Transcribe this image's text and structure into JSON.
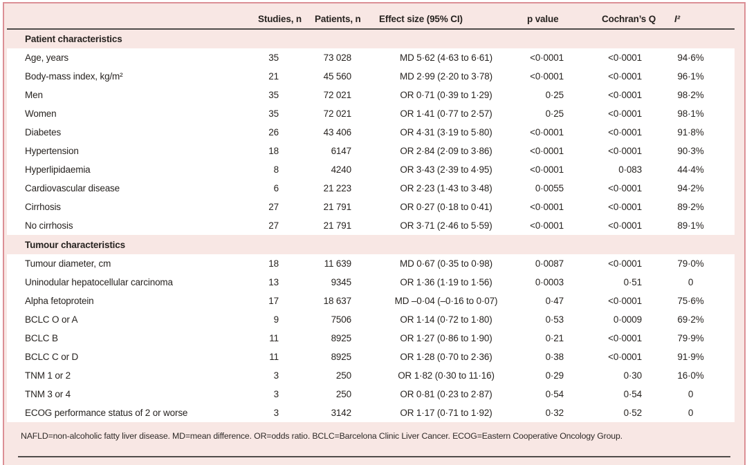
{
  "table": {
    "columns": [
      "",
      "Studies, n",
      "Patients, n",
      "Effect size (95% CI)",
      "p value",
      "Cochran’s Q",
      "I²"
    ],
    "sections": [
      {
        "title": "Patient characteristics",
        "rows": [
          {
            "label": "Age, years",
            "studies": "35",
            "patients": "73 028",
            "effect": "MD 5·62 (4·63 to 6·61)",
            "p": "<0·0001",
            "q": "<0·0001",
            "i2": "94·6%"
          },
          {
            "label": "Body-mass index, kg/m²",
            "studies": "21",
            "patients": "45 560",
            "effect": "MD 2·99 (2·20 to 3·78)",
            "p": "<0·0001",
            "q": "<0·0001",
            "i2": "96·1%"
          },
          {
            "label": "Men",
            "studies": "35",
            "patients": "72 021",
            "effect": "OR 0·71 (0·39 to 1·29)",
            "p": "0·25",
            "q": "<0·0001",
            "i2": "98·2%"
          },
          {
            "label": "Women",
            "studies": "35",
            "patients": "72 021",
            "effect": "OR 1·41 (0·77 to 2·57)",
            "p": "0·25",
            "q": "<0·0001",
            "i2": "98·1%"
          },
          {
            "label": "Diabetes",
            "studies": "26",
            "patients": "43 406",
            "effect": "OR 4·31 (3·19 to 5·80)",
            "p": "<0·0001",
            "q": "<0·0001",
            "i2": "91·8%"
          },
          {
            "label": "Hypertension",
            "studies": "18",
            "patients": "6147",
            "effect": "OR 2·84 (2·09 to 3·86)",
            "p": "<0·0001",
            "q": "<0·0001",
            "i2": "90·3%"
          },
          {
            "label": "Hyperlipidaemia",
            "studies": "8",
            "patients": "4240",
            "effect": "OR 3·43 (2·39 to 4·95)",
            "p": "<0·0001",
            "q": "0·083",
            "i2": "44·4%"
          },
          {
            "label": "Cardiovascular disease",
            "studies": "6",
            "patients": "21 223",
            "effect": "OR 2·23 (1·43 to 3·48)",
            "p": "0·0055",
            "q": "<0·0001",
            "i2": "94·2%"
          },
          {
            "label": "Cirrhosis",
            "studies": "27",
            "patients": "21 791",
            "effect": "OR 0·27 (0·18 to 0·41)",
            "p": "<0·0001",
            "q": "<0·0001",
            "i2": "89·2%"
          },
          {
            "label": "No cirrhosis",
            "studies": "27",
            "patients": "21 791",
            "effect": "OR 3·71 (2·46 to 5·59)",
            "p": "<0·0001",
            "q": "<0·0001",
            "i2": "89·1%"
          }
        ]
      },
      {
        "title": "Tumour characteristics",
        "rows": [
          {
            "label": "Tumour diameter, cm",
            "studies": "18",
            "patients": "11 639",
            "effect": "MD 0·67 (0·35 to 0·98)",
            "p": "0·0087",
            "q": "<0·0001",
            "i2": "79·0%"
          },
          {
            "label": "Uninodular hepatocellular carcinoma",
            "studies": "13",
            "patients": "9345",
            "effect": "OR 1·36 (1·19 to 1·56)",
            "p": "0·0003",
            "q": "0·51",
            "i2": "0"
          },
          {
            "label": "Alpha fetoprotein",
            "studies": "17",
            "patients": "18 637",
            "effect": "MD –0·04 (–0·16 to 0·07)",
            "p": "0·47",
            "q": "<0·0001",
            "i2": "75·6%"
          },
          {
            "label": "BCLC O or A",
            "studies": "9",
            "patients": "7506",
            "effect": "OR 1·14 (0·72 to 1·80)",
            "p": "0·53",
            "q": "0·0009",
            "i2": "69·2%"
          },
          {
            "label": "BCLC B",
            "studies": "11",
            "patients": "8925",
            "effect": "OR 1·27 (0·86 to 1·90)",
            "p": "0·21",
            "q": "<0·0001",
            "i2": "79·9%"
          },
          {
            "label": "BCLC C or D",
            "studies": "11",
            "patients": "8925",
            "effect": "OR 1·28 (0·70 to 2·36)",
            "p": "0·38",
            "q": "<0·0001",
            "i2": "91·9%"
          },
          {
            "label": "TNM 1 or 2",
            "studies": "3",
            "patients": "250",
            "effect": "OR 1·82 (0·30 to 11·16)",
            "p": "0·29",
            "q": "0·30",
            "i2": "16·0%"
          },
          {
            "label": "TNM 3 or 4",
            "studies": "3",
            "patients": "250",
            "effect": "OR 0·81 (0·23 to 2·87)",
            "p": "0·54",
            "q": "0·54",
            "i2": "0"
          },
          {
            "label": "ECOG performance status of 2 or worse",
            "studies": "3",
            "patients": "3142",
            "effect": "OR 1·17 (0·71 to 1·92)",
            "p": "0·32",
            "q": "0·52",
            "i2": "0"
          }
        ]
      }
    ],
    "footnote": "NAFLD=non-alcoholic fatty liver disease. MD=mean difference. OR=odds ratio. BCLC=Barcelona Clinic Liver Cancer. ECOG=Eastern Cooperative Oncology Group."
  },
  "colors": {
    "panel_pink": "#f8e7e4",
    "border_rose": "#db8f95",
    "rule_dark": "#4f4b49",
    "text": "#272320",
    "data_row_white": "#ffffff"
  }
}
